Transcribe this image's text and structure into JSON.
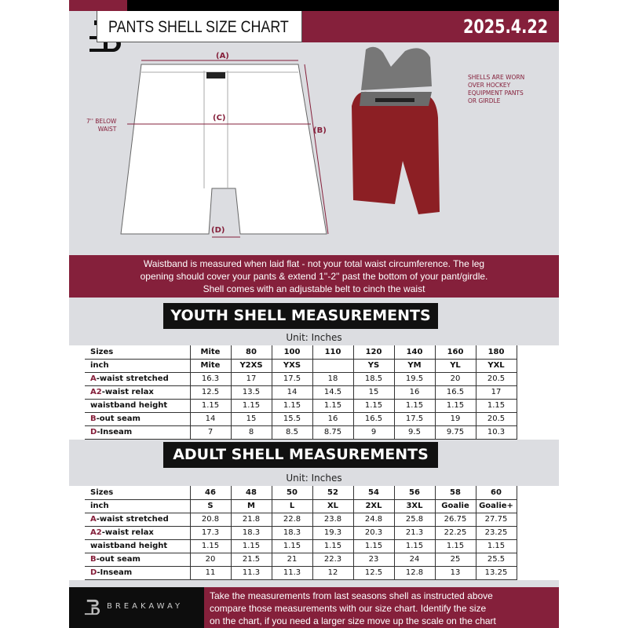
{
  "header": {
    "title": "PANTS SHELL SIZE CHART",
    "date": "2025.4.22"
  },
  "diagram": {
    "label_a": "(A)",
    "label_b": "(B)",
    "label_c": "(C)",
    "label_d": "(D)",
    "below_waist": [
      "7'' BELOW",
      "WAIST"
    ],
    "note": [
      "SHELLS ARE WORN",
      "OVER HOCKEY",
      "EQUIPMENT PANTS",
      "OR GIRDLE"
    ]
  },
  "banner": [
    "Waistband is measured when laid flat - not your total waist circumference. The leg",
    "opening should cover your pants & extend 1''-2'' past the bottom of your pant/girdle.",
    "Shell comes with an adjustable belt to cinch the waist"
  ],
  "youth": {
    "title": "YOUTH SHELL MEASUREMENTS",
    "unit": "Unit: Inches",
    "rows": [
      {
        "prefix": "",
        "label": "Sizes",
        "values": [
          "Mite",
          "80",
          "100",
          "110",
          "120",
          "140",
          "160",
          "180"
        ]
      },
      {
        "prefix": "",
        "label": "inch",
        "values": [
          "Mite",
          "Y2XS",
          "YXS",
          "",
          "YS",
          "YM",
          "YL",
          "YXL"
        ]
      },
      {
        "prefix": "A",
        "label": "-waist stretched",
        "values": [
          "16.3",
          "17",
          "17.5",
          "18",
          "18.5",
          "19.5",
          "20",
          "20.5"
        ]
      },
      {
        "prefix": "A2",
        "label": "-waist relax",
        "values": [
          "12.5",
          "13.5",
          "14",
          "14.5",
          "15",
          "16",
          "16.5",
          "17"
        ]
      },
      {
        "prefix": "",
        "label": "waistband height",
        "values": [
          "1.15",
          "1.15",
          "1.15",
          "1.15",
          "1.15",
          "1.15",
          "1.15",
          "1.15"
        ]
      },
      {
        "prefix": "B",
        "label": "-out seam",
        "values": [
          "14",
          "15",
          "15.5",
          "16",
          "16.5",
          "17.5",
          "19",
          "20.5"
        ]
      },
      {
        "prefix": "D",
        "label": "-Inseam",
        "values": [
          "7",
          "8",
          "8.5",
          "8.75",
          "9",
          "9.5",
          "9.75",
          "10.3"
        ]
      }
    ]
  },
  "adult": {
    "title": "ADULT SHELL MEASUREMENTS",
    "unit": "Unit: Inches",
    "rows": [
      {
        "prefix": "",
        "label": "Sizes",
        "values": [
          "46",
          "48",
          "50",
          "52",
          "54",
          "56",
          "58",
          "60"
        ]
      },
      {
        "prefix": "",
        "label": "inch",
        "values": [
          "S",
          "M",
          "L",
          "XL",
          "2XL",
          "3XL",
          "Goalie",
          "Goalie+"
        ]
      },
      {
        "prefix": "A",
        "label": "-waist stretched",
        "values": [
          "20.8",
          "21.8",
          "22.8",
          "23.8",
          "24.8",
          "25.8",
          "26.75",
          "27.75"
        ]
      },
      {
        "prefix": "A2",
        "label": "-waist relax",
        "values": [
          "17.3",
          "18.3",
          "18.3",
          "19.3",
          "20.3",
          "21.3",
          "22.25",
          "23.25"
        ]
      },
      {
        "prefix": "",
        "label": "waistband height",
        "values": [
          "1.15",
          "1.15",
          "1.15",
          "1.15",
          "1.15",
          "1.15",
          "1.15",
          "1.15"
        ]
      },
      {
        "prefix": "B",
        "label": "-out seam",
        "values": [
          "20",
          "21.5",
          "21",
          "22.3",
          "23",
          "24",
          "25",
          "25.5"
        ]
      },
      {
        "prefix": "D",
        "label": "-Inseam",
        "values": [
          "11",
          "11.3",
          "11.3",
          "12",
          "12.5",
          "12.8",
          "13",
          "13.25"
        ]
      }
    ]
  },
  "footer": {
    "brand": "BREAKAWAY",
    "text": [
      "Take the measurements from last seasons shell as instructed above",
      "compare those measurements  with our size chart. Identify the size",
      "on the chart, if you need a larger size move up the scale on the chart"
    ]
  },
  "colors": {
    "accent": "#85203b",
    "dark": "#111111",
    "background": "#dcdde1"
  }
}
